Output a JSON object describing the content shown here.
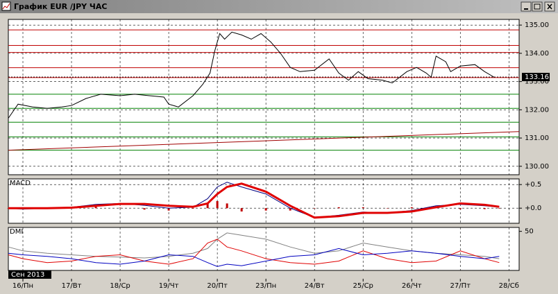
{
  "window": {
    "title": "График EUR /JPY  ЧАС"
  },
  "time_axis": {
    "period_label": "Сен 2013",
    "xlim": [
      -0.3,
      10.21
    ],
    "ticks": [
      {
        "value": 0,
        "label": "16/Пн"
      },
      {
        "value": 1,
        "label": "17/Вт"
      },
      {
        "value": 2,
        "label": "18/Ср"
      },
      {
        "value": 3,
        "label": "19/Чт"
      },
      {
        "value": 4,
        "label": "20/Пт"
      },
      {
        "value": 5,
        "label": "23/Пн"
      },
      {
        "value": 6,
        "label": "24/Вт"
      },
      {
        "value": 7,
        "label": "25/Ср"
      },
      {
        "value": 8,
        "label": "26/Чт"
      },
      {
        "value": 9,
        "label": "27/Пт"
      },
      {
        "value": 10,
        "label": "28/Сб"
      }
    ]
  },
  "chart_data": [
    {
      "type": "line",
      "ylim": [
        129.7,
        135.2
      ],
      "yticks": [
        {
          "value": 130,
          "label": "130.00"
        },
        {
          "value": 131,
          "label": "131.00"
        },
        {
          "value": 132,
          "label": "132.00"
        },
        {
          "value": 133,
          "label": "133.00"
        },
        {
          "value": 134,
          "label": "134.00"
        },
        {
          "value": 135,
          "label": "135.00"
        }
      ],
      "grid": true,
      "last_price": 133.16,
      "levels": [
        {
          "value": 134.83,
          "color": "#c00000"
        },
        {
          "value": 134.28,
          "color": "#c00000"
        },
        {
          "value": 134.03,
          "color": "#c00000"
        },
        {
          "value": 133.49,
          "color": "#c00000"
        },
        {
          "value": 133.14,
          "color": "#c00000"
        },
        {
          "value": 132.55,
          "color": "#008000"
        },
        {
          "value": 132.05,
          "color": "#008000"
        },
        {
          "value": 131.56,
          "color": "#008000"
        },
        {
          "value": 131.04,
          "color": "#008000"
        },
        {
          "value": 130.57,
          "color": "#008000"
        }
      ],
      "series": [
        {
          "color": "#000000",
          "x": [
            -0.3,
            -0.1,
            0.2,
            0.5,
            0.8,
            1.0,
            1.3,
            1.6,
            2.0,
            2.3,
            2.6,
            2.9,
            3.0,
            3.2,
            3.5,
            3.7,
            3.85,
            3.95,
            4.05,
            4.15,
            4.3,
            4.5,
            4.7,
            4.9,
            5.1,
            5.3,
            5.5,
            5.7,
            6.0,
            6.3,
            6.5,
            6.7,
            6.9,
            7.1,
            7.4,
            7.6,
            7.9,
            8.1,
            8.3,
            8.4,
            8.5,
            8.7,
            8.8,
            9.0,
            9.3,
            9.5,
            9.7
          ],
          "values": [
            131.7,
            132.2,
            132.1,
            132.05,
            132.1,
            132.15,
            132.4,
            132.55,
            132.5,
            132.55,
            132.5,
            132.45,
            132.2,
            132.1,
            132.5,
            132.9,
            133.3,
            134.1,
            134.7,
            134.5,
            134.75,
            134.65,
            134.5,
            134.7,
            134.4,
            134.0,
            133.5,
            133.35,
            133.4,
            133.8,
            133.3,
            133.05,
            133.35,
            133.1,
            133.05,
            132.95,
            133.35,
            133.5,
            133.3,
            133.15,
            133.9,
            133.7,
            133.35,
            133.55,
            133.6,
            133.35,
            133.15
          ]
        },
        {
          "color": "#a00000",
          "x": [
            -0.3,
            10.21
          ],
          "values": [
            130.57,
            131.23
          ]
        }
      ]
    },
    {
      "type": "line",
      "title": "MACD",
      "ylim": [
        -0.32,
        0.62
      ],
      "yticks": [
        {
          "value": 0.5,
          "label": "+0.5"
        },
        {
          "value": 0,
          "label": "+0.0"
        }
      ],
      "grid": true,
      "series": [
        {
          "kind": "bar",
          "color": "#c00000",
          "x": [
            -0.3,
            0,
            0.5,
            1,
            1.5,
            2,
            2.5,
            3,
            3.5,
            3.8,
            4,
            4.2,
            4.5,
            5,
            5.5,
            6,
            6.5,
            7,
            7.5,
            8,
            8.5,
            9,
            9.5,
            9.8
          ],
          "values": [
            0,
            -0.02,
            0,
            0.01,
            0.03,
            0.01,
            -0.03,
            -0.05,
            -0.01,
            0.1,
            0.15,
            0.1,
            -0.07,
            -0.05,
            -0.05,
            0,
            0.02,
            0.02,
            0,
            0.02,
            0.03,
            -0.02,
            -0.02,
            -0.01
          ]
        },
        {
          "color": "#000080",
          "width": 1,
          "x": [
            -0.3,
            0,
            0.5,
            1,
            1.5,
            2,
            2.5,
            3,
            3.5,
            3.8,
            4,
            4.2,
            4.5,
            5,
            5.5,
            6,
            6.5,
            7,
            7.5,
            8,
            8.5,
            9,
            9.5,
            9.8
          ],
          "values": [
            0,
            -0.02,
            0,
            0.02,
            0.08,
            0.1,
            0.06,
            0.0,
            0.02,
            0.2,
            0.45,
            0.55,
            0.45,
            0.3,
            0.0,
            -0.2,
            -0.15,
            -0.08,
            -0.1,
            -0.05,
            0.05,
            0.08,
            0.05,
            0.02
          ]
        },
        {
          "color": "#e00000",
          "width": 3,
          "x": [
            -0.3,
            0,
            0.5,
            1,
            1.5,
            2,
            2.5,
            3,
            3.5,
            3.8,
            4,
            4.2,
            4.5,
            5,
            5.5,
            6,
            6.5,
            7,
            7.5,
            8,
            8.5,
            9,
            9.5,
            9.8
          ],
          "values": [
            0,
            0,
            0,
            0.01,
            0.05,
            0.09,
            0.09,
            0.05,
            0.03,
            0.1,
            0.3,
            0.45,
            0.52,
            0.35,
            0.05,
            -0.2,
            -0.17,
            -0.1,
            -0.1,
            -0.07,
            0.02,
            0.1,
            0.07,
            0.03
          ]
        }
      ]
    },
    {
      "type": "line",
      "title": "DMI",
      "ylim": [
        0,
        55
      ],
      "yticks": [
        50
      ],
      "grid": false,
      "series": [
        {
          "color": "#808080",
          "width": 1,
          "x": [
            -0.3,
            0,
            0.5,
            1,
            1.5,
            2,
            2.5,
            3,
            3.5,
            3.8,
            4,
            4.2,
            4.5,
            5,
            5.5,
            6,
            6.5,
            7,
            7.5,
            8,
            8.5,
            9,
            9.5,
            9.8
          ],
          "values": [
            30,
            25,
            22,
            20,
            18,
            17,
            16,
            18,
            22,
            28,
            40,
            48,
            45,
            40,
            30,
            22,
            25,
            35,
            30,
            25,
            22,
            20,
            18,
            15
          ]
        },
        {
          "color": "#e00000",
          "width": 1,
          "x": [
            -0.3,
            0,
            0.5,
            1,
            1.5,
            2,
            2.5,
            3,
            3.5,
            3.8,
            4,
            4.2,
            4.5,
            5,
            5.5,
            6,
            6.5,
            7,
            7.5,
            8,
            8.5,
            9,
            9.5,
            9.8
          ],
          "values": [
            20,
            15,
            10,
            12,
            18,
            20,
            12,
            8,
            15,
            35,
            40,
            30,
            25,
            15,
            10,
            8,
            12,
            25,
            15,
            10,
            12,
            25,
            15,
            10
          ]
        },
        {
          "color": "#0000c0",
          "width": 1,
          "x": [
            -0.3,
            0,
            0.5,
            1,
            1.5,
            2,
            2.5,
            3,
            3.5,
            3.8,
            4,
            4.2,
            4.5,
            5,
            5.5,
            6,
            6.5,
            7,
            7.5,
            8,
            8.5,
            9,
            9.5,
            9.8
          ],
          "values": [
            22,
            20,
            18,
            15,
            10,
            8,
            12,
            20,
            18,
            10,
            5,
            8,
            6,
            12,
            18,
            20,
            28,
            20,
            22,
            25,
            22,
            18,
            15,
            18
          ]
        }
      ]
    }
  ]
}
